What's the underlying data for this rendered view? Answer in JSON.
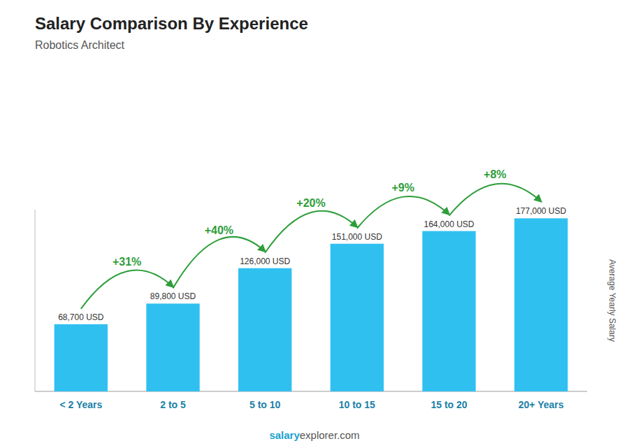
{
  "chart_data": {
    "type": "bar",
    "title": "Salary Comparison By Experience",
    "subtitle": "Robotics Architect",
    "ylabel": "Average Yearly Salary",
    "categories": [
      "< 2 Years",
      "2 to 5",
      "5 to 10",
      "10 to 15",
      "15 to 20",
      "20+ Years"
    ],
    "values": [
      68700,
      89800,
      126000,
      151000,
      164000,
      177000
    ],
    "value_labels": [
      "68,700 USD",
      "89,800 USD",
      "126,000 USD",
      "151,000 USD",
      "164,000 USD",
      "177,000 USD"
    ],
    "data_labels": true,
    "color": "#30c0f0",
    "ylim": [
      0,
      185850
    ],
    "tick_labels": "x",
    "annotations": [
      "+31%",
      "+40%",
      "+20%",
      "+9%",
      "+8%"
    ],
    "watermark": [
      "salary",
      "explorer.com"
    ]
  }
}
